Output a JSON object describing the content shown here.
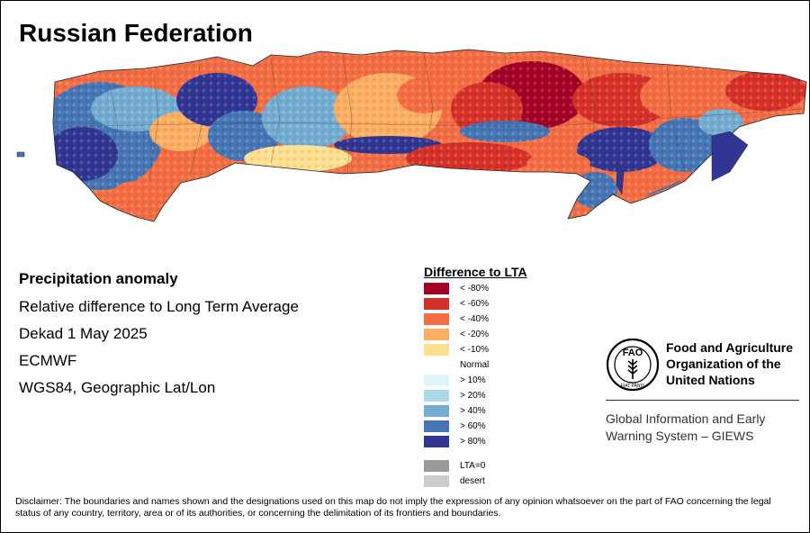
{
  "title": "Russian Federation",
  "info": {
    "heading": "Precipitation anomaly",
    "line1": "Relative difference to Long Term Average",
    "line2": "Dekad 1 May 2025",
    "line3": "ECMWF",
    "line4": "WGS84, Geographic Lat/Lon"
  },
  "legend": {
    "title": "Difference to LTA",
    "items": [
      {
        "label": "< -80%",
        "color": "#a50026"
      },
      {
        "label": "< -60%",
        "color": "#d73027"
      },
      {
        "label": "< -40%",
        "color": "#f46d43"
      },
      {
        "label": "< -20%",
        "color": "#fdae61"
      },
      {
        "label": "< -10%",
        "color": "#fee090"
      },
      {
        "label": "Normal",
        "color": "#ffffff"
      },
      {
        "label": "> 10%",
        "color": "#e0f3f8"
      },
      {
        "label": "> 20%",
        "color": "#abd9e9"
      },
      {
        "label": "> 40%",
        "color": "#74add1"
      },
      {
        "label": "> 60%",
        "color": "#4575b4"
      },
      {
        "label": "> 80%",
        "color": "#313695"
      },
      {
        "label": "LTA=0",
        "color": "#999999"
      },
      {
        "label": "desert",
        "color": "#cccccc"
      }
    ]
  },
  "org": {
    "logo_text": "FAO",
    "logo_motto": "FIAT PANIS",
    "name": "Food and Agriculture Organization of the United Nations",
    "system": "Global Information and Early Warning System – GIEWS"
  },
  "disclaimer": "Disclaimer: The boundaries and names shown and the designations used on this map do not imply the expression of any opinion whatsoever on the part of FAO concerning the legal status of any country, territory, area or of its authorities, or concerning the delimitation of its frontiers and boundaries.",
  "map": {
    "region": "Russian Federation",
    "dominant_pattern": "Below-average precipitation (red/orange) across central and northeastern Siberia; above-average (blue) across western Russia, the Urals belt and parts of the Far East"
  }
}
